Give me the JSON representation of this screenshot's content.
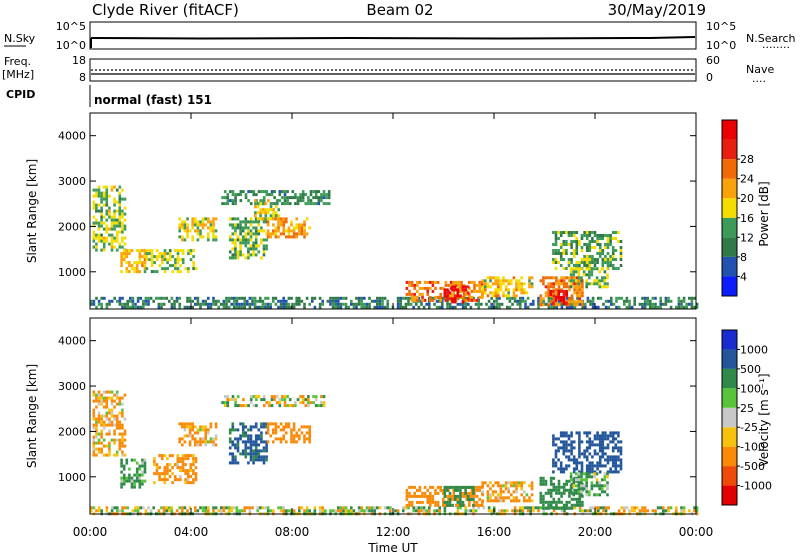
{
  "header": {
    "station": "Clyde River (fitACF)",
    "beam": "Beam 02",
    "date": "30/May/2019"
  },
  "strips": {
    "nsky": {
      "label": "N.Sky",
      "ticks": [
        "10^5",
        "10^0"
      ]
    },
    "nsearch": {
      "label": "N.Search",
      "ticks": [
        "10^5",
        "10^0"
      ],
      "legend_line": "........"
    },
    "freq": {
      "label_top": "Freq.",
      "label_unit": "[MHz]",
      "ticks": [
        "18",
        "8"
      ]
    },
    "nave": {
      "label": "Nave",
      "ticks": [
        "60",
        "0"
      ],
      "legend_line": "...."
    },
    "cpid": {
      "label": "CPID",
      "text": "normal (fast) 151"
    }
  },
  "x_axis": {
    "label": "Time UT",
    "ticks": [
      "00:00",
      "04:00",
      "08:00",
      "12:00",
      "16:00",
      "20:00",
      "00:00"
    ],
    "range_hours": [
      0,
      24
    ]
  },
  "colors": {
    "power": [
      "#0b1cff",
      "#2252b0",
      "#2f7a46",
      "#3e9a58",
      "#f5dd00",
      "#f9a20a",
      "#f06a08",
      "#e81f10",
      "#ea0000"
    ],
    "velocity": [
      "#e00000",
      "#f04a08",
      "#f98a08",
      "#f7c20c",
      "#c8c8c8",
      "#58c43a",
      "#2f8a4a",
      "#22559a",
      "#1a2bd0"
    ]
  },
  "chart_data": [
    {
      "type": "heatmap",
      "name": "power-panel",
      "xlabel": "Time UT",
      "ylabel": "Slant Range [km]",
      "xlim": [
        0,
        24
      ],
      "ylim": [
        180,
        4500
      ],
      "yticks": [
        "1000",
        "2000",
        "3000",
        "4000"
      ],
      "colorbar": {
        "label": "Power [dB]",
        "ticks": [
          "4",
          "8",
          "12",
          "16",
          "20",
          "24",
          "28"
        ],
        "range": [
          0,
          32
        ]
      },
      "regions": [
        {
          "t": [
            0.1,
            1.4
          ],
          "r": [
            1500,
            2900
          ],
          "v": 14
        },
        {
          "t": [
            1.2,
            2.2
          ],
          "r": [
            1000,
            1500
          ],
          "v": 18
        },
        {
          "t": [
            2.2,
            4.2
          ],
          "r": [
            1000,
            1500
          ],
          "v": 14
        },
        {
          "t": [
            3.5,
            5.0
          ],
          "r": [
            1700,
            2200
          ],
          "v": 16
        },
        {
          "t": [
            5.5,
            7.0
          ],
          "r": [
            1300,
            2200
          ],
          "v": 13
        },
        {
          "t": [
            5.2,
            9.5
          ],
          "r": [
            2500,
            2800
          ],
          "v": 10
        },
        {
          "t": [
            6.5,
            7.5
          ],
          "r": [
            2200,
            2600
          ],
          "v": 15
        },
        {
          "t": [
            7.0,
            8.7
          ],
          "r": [
            1800,
            2200
          ],
          "v": 20
        },
        {
          "t": [
            0.0,
            24.0
          ],
          "r": [
            200,
            450
          ],
          "v": 9
        },
        {
          "t": [
            12.5,
            15.5
          ],
          "r": [
            400,
            800
          ],
          "v": 22
        },
        {
          "t": [
            14.0,
            15.0
          ],
          "r": [
            350,
            700
          ],
          "v": 30
        },
        {
          "t": [
            15.5,
            17.5
          ],
          "r": [
            500,
            900
          ],
          "v": 18
        },
        {
          "t": [
            17.8,
            19.5
          ],
          "r": [
            300,
            900
          ],
          "v": 22
        },
        {
          "t": [
            18.2,
            18.9
          ],
          "r": [
            300,
            600
          ],
          "v": 30
        },
        {
          "t": [
            18.3,
            21.0
          ],
          "r": [
            1100,
            1900
          ],
          "v": 12
        },
        {
          "t": [
            19.0,
            20.5
          ],
          "r": [
            700,
            1100
          ],
          "v": 14
        }
      ]
    },
    {
      "type": "heatmap",
      "name": "velocity-panel",
      "xlabel": "Time UT",
      "ylabel": "Slant Range [km]",
      "xlim": [
        0,
        24
      ],
      "ylim": [
        180,
        4500
      ],
      "yticks": [
        "1000",
        "2000",
        "3000",
        "4000"
      ],
      "colorbar": {
        "label": "Velocity [m s⁻¹]",
        "ticks": [
          "-1000",
          "-500",
          "-100",
          "-25",
          "25",
          "100",
          "500",
          "1000"
        ]
      },
      "regions": [
        {
          "t": [
            0.1,
            1.4
          ],
          "r": [
            1500,
            2900
          ],
          "v": -150
        },
        {
          "t": [
            1.2,
            2.2
          ],
          "r": [
            800,
            1400
          ],
          "v": 200
        },
        {
          "t": [
            2.5,
            4.2
          ],
          "r": [
            900,
            1500
          ],
          "v": -200
        },
        {
          "t": [
            3.5,
            5.0
          ],
          "r": [
            1700,
            2200
          ],
          "v": -150
        },
        {
          "t": [
            5.5,
            7.0
          ],
          "r": [
            1300,
            2200
          ],
          "v": 600
        },
        {
          "t": [
            5.2,
            9.5
          ],
          "r": [
            2600,
            2800
          ],
          "v": 0
        },
        {
          "t": [
            7.0,
            8.7
          ],
          "r": [
            1800,
            2200
          ],
          "v": -300
        },
        {
          "t": [
            0.0,
            24.0
          ],
          "r": [
            200,
            350
          ],
          "v": 0
        },
        {
          "t": [
            12.5,
            15.5
          ],
          "r": [
            400,
            800
          ],
          "v": -300
        },
        {
          "t": [
            14.0,
            15.2
          ],
          "r": [
            350,
            800
          ],
          "v": 300
        },
        {
          "t": [
            15.5,
            17.5
          ],
          "r": [
            500,
            900
          ],
          "v": -150
        },
        {
          "t": [
            17.8,
            19.5
          ],
          "r": [
            300,
            1000
          ],
          "v": 300
        },
        {
          "t": [
            18.3,
            21.0
          ],
          "r": [
            1100,
            2000
          ],
          "v": 700
        },
        {
          "t": [
            19.0,
            20.5
          ],
          "r": [
            600,
            1100
          ],
          "v": 150
        }
      ]
    }
  ]
}
